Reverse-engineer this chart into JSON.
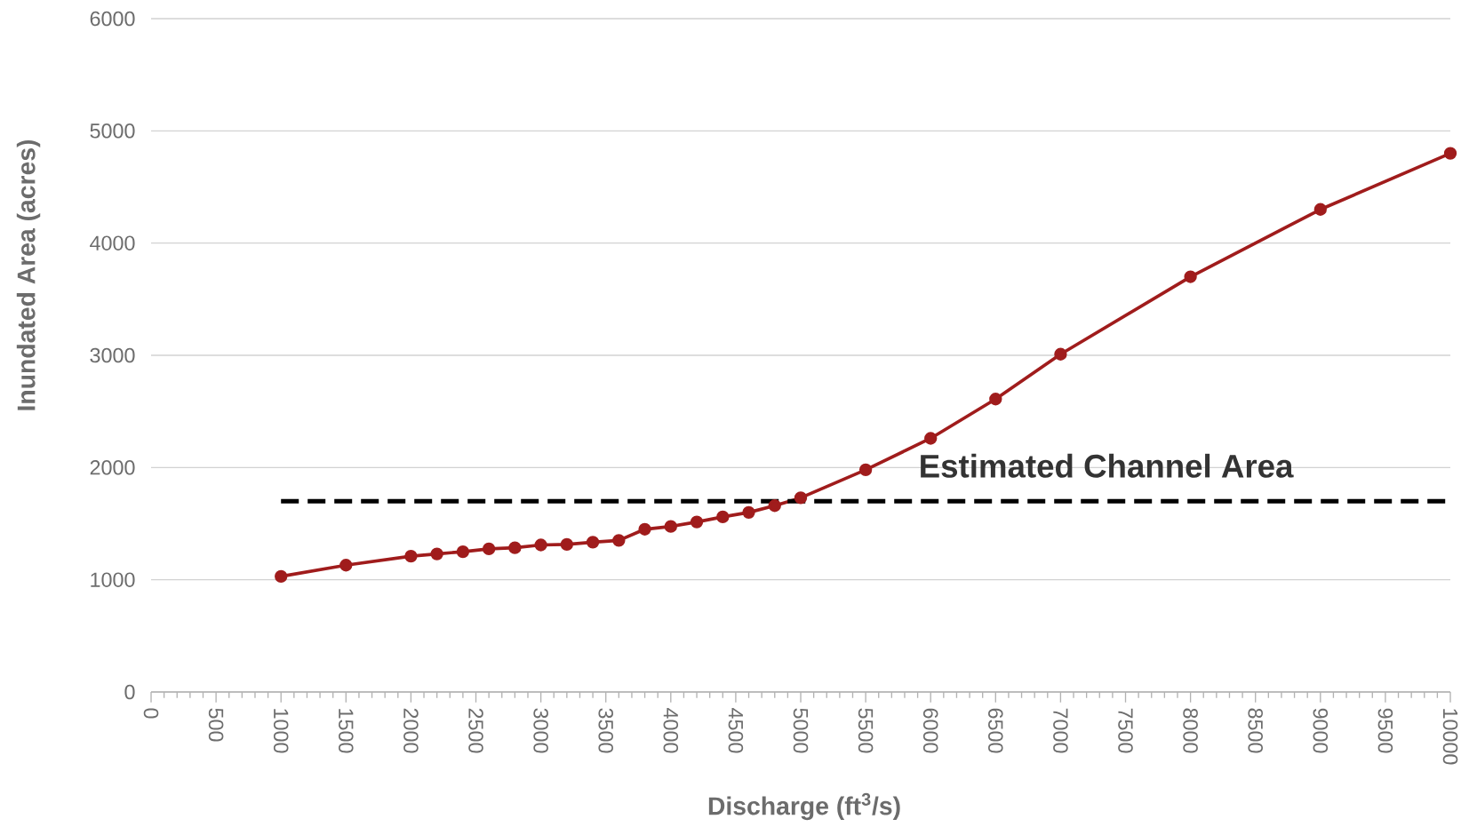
{
  "chart_data": {
    "type": "line",
    "xlabel": "Discharge (ft$^{3}$/s)",
    "ylabel": "Inundated Area (acres)",
    "xlim": [
      0,
      10000
    ],
    "xticks": [
      0,
      500,
      1000,
      1500,
      2000,
      2500,
      3000,
      3500,
      4000,
      4500,
      5000,
      5500,
      6000,
      6500,
      7000,
      7500,
      8000,
      8500,
      9000,
      9500,
      10000
    ],
    "ylim": [
      0,
      6000
    ],
    "yticks": [
      0,
      1000,
      2000,
      3000,
      4000,
      5000,
      6000
    ],
    "grid": "y",
    "series": [
      {
        "color": "#a01c1c",
        "marker": "circle",
        "line_style": "solid",
        "x": [
          1000,
          1500,
          2000,
          2200,
          2400,
          2600,
          2800,
          3000,
          3200,
          3400,
          3600,
          3800,
          4000,
          4200,
          4400,
          4600,
          4800,
          5000,
          5500,
          6000,
          6500,
          7000,
          8000,
          9000,
          10000
        ],
        "values": [
          1030,
          1130,
          1210,
          1230,
          1250,
          1275,
          1285,
          1310,
          1315,
          1335,
          1350,
          1450,
          1475,
          1515,
          1560,
          1600,
          1660,
          1730,
          1980,
          2260,
          2610,
          3010,
          3700,
          4300,
          4800
        ]
      },
      {
        "color": "#000000",
        "marker": "none",
        "line_style": "dashed",
        "x": [
          1000,
          10000
        ],
        "values": [
          1700,
          1700
        ]
      }
    ],
    "annotations": [
      "Estimated Channel Area"
    ]
  }
}
